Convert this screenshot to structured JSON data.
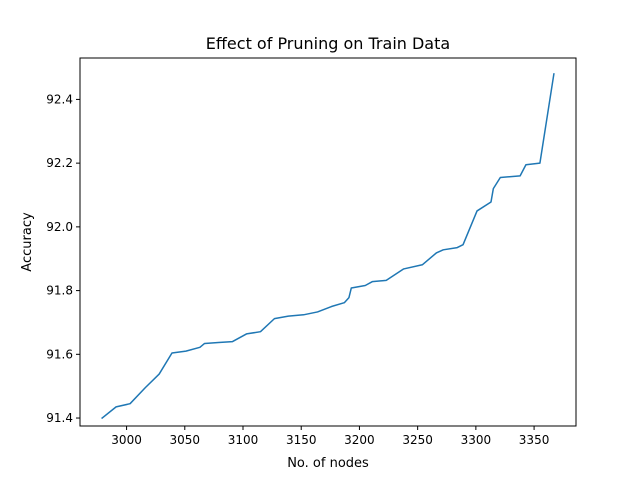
{
  "chart_data": {
    "type": "line",
    "title": "Effect of Pruning on Train Data",
    "xlabel": "No. of nodes",
    "ylabel": "Accuracy",
    "xlim": [
      2960,
      3386
    ],
    "ylim": [
      91.375,
      92.53
    ],
    "xticks": [
      3000,
      3050,
      3100,
      3150,
      3200,
      3250,
      3300,
      3350
    ],
    "xtick_labels": [
      "3000",
      "3050",
      "3100",
      "3150",
      "3200",
      "3250",
      "3300",
      "3350"
    ],
    "yticks": [
      91.4,
      91.6,
      91.8,
      92.0,
      92.2,
      92.4
    ],
    "ytick_labels": [
      "91.4",
      "91.6",
      "91.8",
      "92.0",
      "92.2",
      "92.4"
    ],
    "grid": false,
    "series": [
      {
        "color": "#1f77b4",
        "x": [
          2979,
          2991,
          3003,
          3016,
          3028,
          3039,
          3051,
          3063,
          3067,
          3079,
          3091,
          3103,
          3115,
          3127,
          3139,
          3152,
          3164,
          3176,
          3187,
          3191,
          3193,
          3205,
          3211,
          3223,
          3238,
          3254,
          3266,
          3272,
          3284,
          3289,
          3301,
          3313,
          3315,
          3321,
          3338,
          3343,
          3355,
          3367
        ],
        "y": [
          91.4,
          91.435,
          91.445,
          91.495,
          91.538,
          91.604,
          91.61,
          91.622,
          91.634,
          91.637,
          91.64,
          91.664,
          91.671,
          91.712,
          91.72,
          91.724,
          91.733,
          91.75,
          91.762,
          91.778,
          91.808,
          91.816,
          91.828,
          91.832,
          91.868,
          91.881,
          91.918,
          91.928,
          91.935,
          91.944,
          92.05,
          92.078,
          92.12,
          92.155,
          92.16,
          92.195,
          92.2,
          92.48
        ]
      }
    ]
  }
}
